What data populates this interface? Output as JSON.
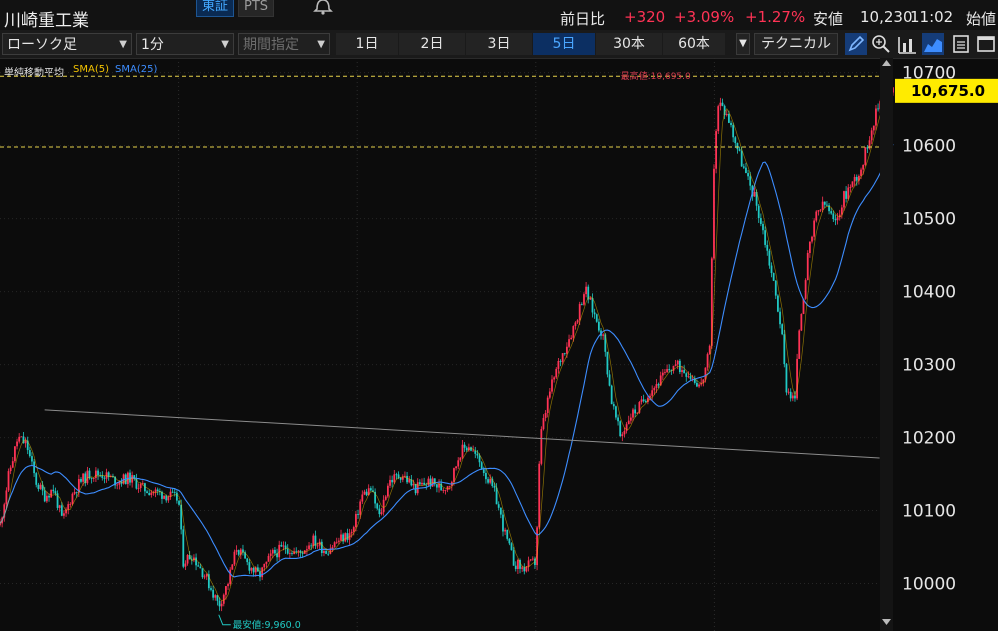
{
  "header": {
    "stock_name": "川崎重工業",
    "market_tabs": [
      "東証",
      "PTS"
    ],
    "change_label": "前日比",
    "change_value": "+320",
    "change_pct": "+3.09%",
    "change_pct2": "+1.27%",
    "low_label": "安値",
    "low_value": "10,230",
    "time": "11:02",
    "open_label": "始値"
  },
  "toolbar": {
    "chart_type": "ローソク足",
    "interval": "1分",
    "period_placeholder": "期間指定",
    "ranges": [
      "1日",
      "2日",
      "3日",
      "5日",
      "30本",
      "60本"
    ],
    "active_range": "5日",
    "technical_label": "テクニカル",
    "icons": [
      "pen-icon",
      "zoom-icon",
      "volume-icon",
      "area-chart-icon",
      "save-icon",
      "window-icon"
    ]
  },
  "indicators": {
    "title": "単純移動平均",
    "sma5": "SMA(5)",
    "sma25": "SMA(25)"
  },
  "colors": {
    "up": "#ff3355",
    "down": "#21c9c4",
    "sma5": "#f2c200",
    "sma25": "#3d8dff",
    "last_price_bg": "#ffeb00",
    "dashed_line": "#e6d24a"
  },
  "chart_data": {
    "type": "candlestick",
    "interval": "1分",
    "yticks": [
      10000,
      10100,
      10200,
      10300,
      10400,
      10500,
      10600,
      10700
    ],
    "ylim": [
      9935,
      10720
    ],
    "last_price": 10675.0,
    "last_price_label": "10,675.0",
    "high_value": 10695,
    "high_label": "最高値:10,695.0",
    "low_value": 9960,
    "low_label": "最安値:9,960.0",
    "reference_line": 10598,
    "trendline": [
      [
        0.05,
        10238
      ],
      [
        0.985,
        10172
      ]
    ],
    "day_separators": [
      0.2,
      0.4,
      0.6,
      0.8
    ],
    "price_path": [
      [
        0.0,
        10080
      ],
      [
        0.01,
        10150
      ],
      [
        0.02,
        10200
      ],
      [
        0.03,
        10190
      ],
      [
        0.04,
        10140
      ],
      [
        0.05,
        10120
      ],
      [
        0.06,
        10130
      ],
      [
        0.07,
        10085
      ],
      [
        0.08,
        10120
      ],
      [
        0.09,
        10140
      ],
      [
        0.1,
        10150
      ],
      [
        0.115,
        10150
      ],
      [
        0.13,
        10140
      ],
      [
        0.145,
        10145
      ],
      [
        0.16,
        10130
      ],
      [
        0.175,
        10125
      ],
      [
        0.19,
        10120
      ],
      [
        0.2,
        10115
      ],
      [
        0.205,
        10030
      ],
      [
        0.215,
        10040
      ],
      [
        0.23,
        10010
      ],
      [
        0.245,
        9970
      ],
      [
        0.255,
        10000
      ],
      [
        0.265,
        10050
      ],
      [
        0.275,
        10030
      ],
      [
        0.29,
        10010
      ],
      [
        0.305,
        10040
      ],
      [
        0.32,
        10050
      ],
      [
        0.335,
        10040
      ],
      [
        0.35,
        10060
      ],
      [
        0.365,
        10045
      ],
      [
        0.38,
        10060
      ],
      [
        0.395,
        10070
      ],
      [
        0.405,
        10120
      ],
      [
        0.415,
        10130
      ],
      [
        0.425,
        10090
      ],
      [
        0.435,
        10140
      ],
      [
        0.45,
        10150
      ],
      [
        0.465,
        10130
      ],
      [
        0.48,
        10140
      ],
      [
        0.495,
        10130
      ],
      [
        0.505,
        10140
      ],
      [
        0.515,
        10180
      ],
      [
        0.525,
        10190
      ],
      [
        0.54,
        10160
      ],
      [
        0.555,
        10120
      ],
      [
        0.565,
        10070
      ],
      [
        0.575,
        10030
      ],
      [
        0.585,
        10020
      ],
      [
        0.6,
        10030
      ],
      [
        0.605,
        10200
      ],
      [
        0.615,
        10260
      ],
      [
        0.625,
        10300
      ],
      [
        0.635,
        10330
      ],
      [
        0.645,
        10360
      ],
      [
        0.655,
        10405
      ],
      [
        0.665,
        10370
      ],
      [
        0.675,
        10340
      ],
      [
        0.685,
        10250
      ],
      [
        0.695,
        10200
      ],
      [
        0.705,
        10230
      ],
      [
        0.715,
        10240
      ],
      [
        0.725,
        10260
      ],
      [
        0.74,
        10280
      ],
      [
        0.755,
        10300
      ],
      [
        0.77,
        10290
      ],
      [
        0.785,
        10270
      ],
      [
        0.795,
        10320
      ],
      [
        0.8,
        10600
      ],
      [
        0.805,
        10660
      ],
      [
        0.815,
        10640
      ],
      [
        0.825,
        10600
      ],
      [
        0.835,
        10560
      ],
      [
        0.845,
        10530
      ],
      [
        0.855,
        10480
      ],
      [
        0.865,
        10420
      ],
      [
        0.875,
        10350
      ],
      [
        0.88,
        10270
      ],
      [
        0.89,
        10250
      ],
      [
        0.895,
        10350
      ],
      [
        0.905,
        10450
      ],
      [
        0.915,
        10510
      ],
      [
        0.925,
        10520
      ],
      [
        0.935,
        10490
      ],
      [
        0.945,
        10530
      ],
      [
        0.955,
        10550
      ],
      [
        0.965,
        10570
      ],
      [
        0.975,
        10620
      ],
      [
        0.985,
        10660
      ],
      [
        0.995,
        10670
      ],
      [
        1.0,
        10675
      ]
    ]
  }
}
